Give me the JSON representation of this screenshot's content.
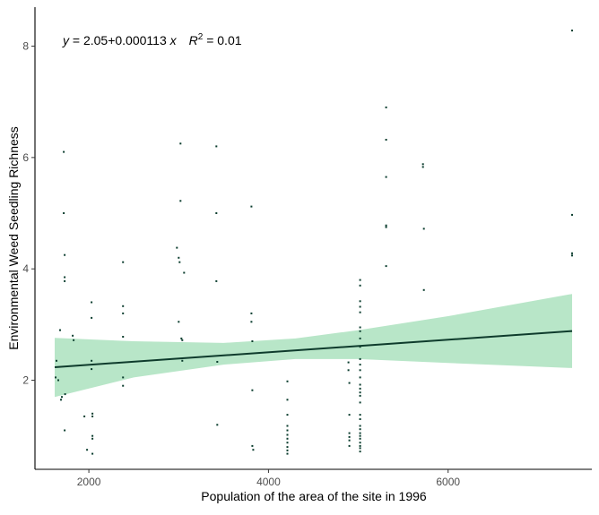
{
  "chart_data": {
    "type": "scatter",
    "title": "",
    "xlabel": "Population of the area of the site in 1996",
    "ylabel": "Environmental Weed Seedling Richness",
    "xlim": [
      1400,
      7600
    ],
    "ylim": [
      0.4,
      8.7
    ],
    "x_ticks": [
      2000,
      4000,
      6000
    ],
    "y_ticks": [
      2,
      4,
      6,
      8
    ],
    "x_tick_labels": [
      "2000",
      "4000",
      "6000"
    ],
    "y_tick_labels": [
      "2",
      "4",
      "6",
      "8"
    ],
    "grid": false,
    "annotation": {
      "y_label": "y",
      "equals_intercept": " = 2.05",
      "plus_slope": "+0.000113",
      "x_label": " x",
      "r_label": "R",
      "r_exponent": "2",
      "r_value": " = 0.01"
    },
    "fit": {
      "intercept": 2.05,
      "slope": 0.000113,
      "x_range": [
        1620,
        7380
      ],
      "ci_lower": [
        [
          1620,
          1.7
        ],
        [
          2500,
          2.05
        ],
        [
          3500,
          2.28
        ],
        [
          4300,
          2.38
        ],
        [
          5000,
          2.38
        ],
        [
          6000,
          2.31
        ],
        [
          7380,
          2.22
        ]
      ],
      "ci_upper": [
        [
          1620,
          2.76
        ],
        [
          2500,
          2.7
        ],
        [
          3500,
          2.67
        ],
        [
          4300,
          2.75
        ],
        [
          5000,
          2.9
        ],
        [
          6000,
          3.15
        ],
        [
          7380,
          3.55
        ]
      ]
    },
    "series": [
      {
        "points": [
          [
            1630,
            2.05
          ],
          [
            1640,
            2.35
          ],
          [
            1660,
            2.0
          ],
          [
            1680,
            2.9
          ],
          [
            1690,
            1.65
          ],
          [
            1700,
            1.7
          ],
          [
            1720,
            6.1
          ],
          [
            1720,
            5.0
          ],
          [
            1730,
            4.25
          ],
          [
            1730,
            3.85
          ],
          [
            1730,
            3.78
          ],
          [
            1730,
            1.1
          ],
          [
            1735,
            1.75
          ],
          [
            1820,
            2.8
          ],
          [
            1830,
            2.72
          ],
          [
            1950,
            1.35
          ],
          [
            1980,
            0.75
          ],
          [
            2030,
            3.4
          ],
          [
            2030,
            3.12
          ],
          [
            2030,
            2.35
          ],
          [
            2030,
            2.2
          ],
          [
            2040,
            1.4
          ],
          [
            2040,
            1.35
          ],
          [
            2040,
            1.0
          ],
          [
            2040,
            0.95
          ],
          [
            2040,
            0.68
          ],
          [
            2380,
            4.12
          ],
          [
            2380,
            3.33
          ],
          [
            2380,
            3.2
          ],
          [
            2380,
            2.78
          ],
          [
            2380,
            2.05
          ],
          [
            2380,
            1.9
          ],
          [
            2980,
            4.38
          ],
          [
            3000,
            4.2
          ],
          [
            3000,
            3.05
          ],
          [
            3010,
            4.12
          ],
          [
            3020,
            6.25
          ],
          [
            3020,
            5.22
          ],
          [
            3030,
            2.75
          ],
          [
            3040,
            2.72
          ],
          [
            3040,
            2.35
          ],
          [
            3060,
            3.93
          ],
          [
            3420,
            6.2
          ],
          [
            3420,
            5.0
          ],
          [
            3420,
            3.78
          ],
          [
            3430,
            2.33
          ],
          [
            3430,
            1.2
          ],
          [
            3810,
            5.12
          ],
          [
            3810,
            3.2
          ],
          [
            3810,
            3.05
          ],
          [
            3820,
            2.7
          ],
          [
            3820,
            1.82
          ],
          [
            3820,
            0.82
          ],
          [
            3830,
            0.75
          ],
          [
            4210,
            1.98
          ],
          [
            4210,
            1.65
          ],
          [
            4210,
            1.38
          ],
          [
            4210,
            1.18
          ],
          [
            4210,
            1.1
          ],
          [
            4210,
            1.02
          ],
          [
            4210,
            0.95
          ],
          [
            4210,
            0.88
          ],
          [
            4210,
            0.8
          ],
          [
            4210,
            0.74
          ],
          [
            4210,
            0.68
          ],
          [
            4890,
            2.32
          ],
          [
            4890,
            2.18
          ],
          [
            4900,
            1.95
          ],
          [
            4900,
            1.38
          ],
          [
            4900,
            1.05
          ],
          [
            4900,
            0.98
          ],
          [
            4900,
            0.92
          ],
          [
            4900,
            0.82
          ],
          [
            5020,
            3.8
          ],
          [
            5020,
            3.7
          ],
          [
            5020,
            3.42
          ],
          [
            5020,
            3.32
          ],
          [
            5020,
            3.22
          ],
          [
            5020,
            2.95
          ],
          [
            5020,
            2.88
          ],
          [
            5020,
            2.75
          ],
          [
            5020,
            2.6
          ],
          [
            5020,
            2.38
          ],
          [
            5020,
            2.28
          ],
          [
            5020,
            2.18
          ],
          [
            5020,
            2.05
          ],
          [
            5020,
            1.92
          ],
          [
            5020,
            1.85
          ],
          [
            5020,
            1.78
          ],
          [
            5020,
            1.72
          ],
          [
            5020,
            1.6
          ],
          [
            5020,
            1.38
          ],
          [
            5020,
            1.3
          ],
          [
            5020,
            1.18
          ],
          [
            5020,
            1.12
          ],
          [
            5020,
            1.05
          ],
          [
            5020,
            1.0
          ],
          [
            5020,
            0.95
          ],
          [
            5020,
            0.88
          ],
          [
            5020,
            0.82
          ],
          [
            5020,
            0.78
          ],
          [
            5020,
            0.72
          ],
          [
            5310,
            6.9
          ],
          [
            5310,
            6.32
          ],
          [
            5310,
            5.65
          ],
          [
            5310,
            4.78
          ],
          [
            5310,
            4.75
          ],
          [
            5310,
            4.05
          ],
          [
            5720,
            5.88
          ],
          [
            5720,
            5.83
          ],
          [
            5730,
            4.72
          ],
          [
            5730,
            3.62
          ],
          [
            7380,
            8.28
          ],
          [
            7380,
            4.97
          ],
          [
            7380,
            4.28
          ],
          [
            7380,
            4.24
          ]
        ]
      }
    ]
  }
}
